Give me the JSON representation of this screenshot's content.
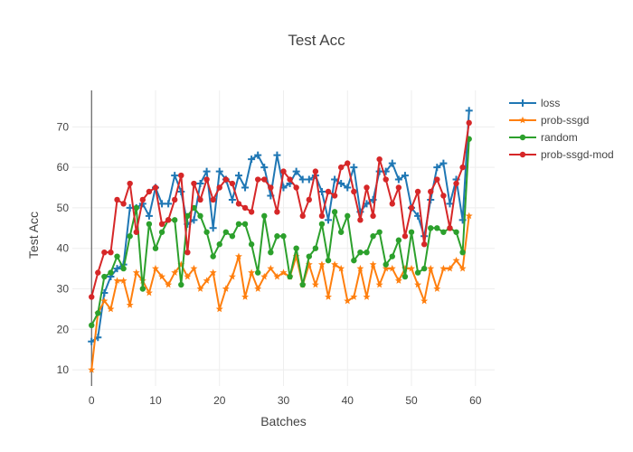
{
  "chart_data": {
    "type": "line",
    "title": "Test Acc",
    "xlabel": "Batches",
    "ylabel": "Test Acc",
    "xlim": [
      -3,
      63
    ],
    "ylim": [
      6,
      79
    ],
    "x_ticks": [
      0,
      10,
      20,
      30,
      40,
      50,
      60
    ],
    "y_ticks": [
      10,
      20,
      30,
      40,
      50,
      60,
      70
    ],
    "grid": true,
    "legend_position": "top-right",
    "x": [
      0,
      1,
      2,
      3,
      4,
      5,
      6,
      7,
      8,
      9,
      10,
      11,
      12,
      13,
      14,
      15,
      16,
      17,
      18,
      19,
      20,
      21,
      22,
      23,
      24,
      25,
      26,
      27,
      28,
      29,
      30,
      31,
      32,
      33,
      34,
      35,
      36,
      37,
      38,
      39,
      40,
      41,
      42,
      43,
      44,
      45,
      46,
      47,
      48,
      49,
      50,
      51,
      52,
      53,
      54,
      55,
      56,
      57,
      58,
      59
    ],
    "series": [
      {
        "name": "loss",
        "color": "#1f77b4",
        "marker": "plus",
        "values": [
          17,
          18,
          29,
          33,
          35,
          36,
          50,
          50,
          51,
          48,
          55,
          51,
          51,
          58,
          54,
          46,
          47,
          56,
          59,
          45,
          59,
          57,
          52,
          58,
          55,
          62,
          63,
          60,
          53,
          63,
          55,
          56,
          59,
          57,
          57,
          58,
          54,
          47,
          57,
          56,
          55,
          60,
          49,
          51,
          52,
          59,
          59,
          61,
          57,
          58,
          50,
          48,
          43,
          52,
          60,
          61,
          51,
          57,
          47,
          74
        ]
      },
      {
        "name": "prob-ssgd",
        "color": "#ff7f0e",
        "marker": "star",
        "values": [
          10,
          24,
          27,
          25,
          32,
          32,
          26,
          34,
          32,
          29,
          35,
          33,
          31,
          34,
          36,
          33,
          35,
          30,
          32,
          34,
          25,
          30,
          33,
          38,
          28,
          34,
          30,
          33,
          35,
          33,
          34,
          33,
          38,
          31,
          36,
          31,
          36,
          28,
          36,
          35,
          27,
          28,
          35,
          28,
          36,
          31,
          35,
          35,
          32,
          35,
          35,
          31,
          27,
          35,
          30,
          35,
          35,
          37,
          35,
          48
        ]
      },
      {
        "name": "random",
        "color": "#2ca02c",
        "marker": "circle",
        "values": [
          21,
          24,
          33,
          34,
          38,
          35,
          43,
          50,
          30,
          46,
          40,
          44,
          47,
          47,
          31,
          48,
          50,
          48,
          44,
          38,
          41,
          44,
          43,
          46,
          46,
          41,
          34,
          48,
          39,
          43,
          43,
          33,
          40,
          31,
          38,
          40,
          46,
          37,
          49,
          44,
          48,
          37,
          39,
          39,
          43,
          44,
          36,
          38,
          42,
          33,
          44,
          34,
          35,
          45,
          45,
          44,
          45,
          44,
          39,
          67
        ]
      },
      {
        "name": "prob-ssgd-mod",
        "color": "#d62728",
        "marker": "circle",
        "values": [
          28,
          34,
          39,
          39,
          52,
          51,
          56,
          44,
          52,
          54,
          55,
          46,
          47,
          52,
          58,
          39,
          56,
          52,
          57,
          52,
          55,
          57,
          56,
          51,
          50,
          49,
          57,
          57,
          55,
          49,
          59,
          57,
          55,
          48,
          52,
          59,
          48,
          54,
          53,
          60,
          61,
          54,
          47,
          55,
          48,
          62,
          57,
          51,
          55,
          43,
          50,
          54,
          41,
          54,
          57,
          53,
          45,
          56,
          60,
          71
        ]
      }
    ]
  }
}
